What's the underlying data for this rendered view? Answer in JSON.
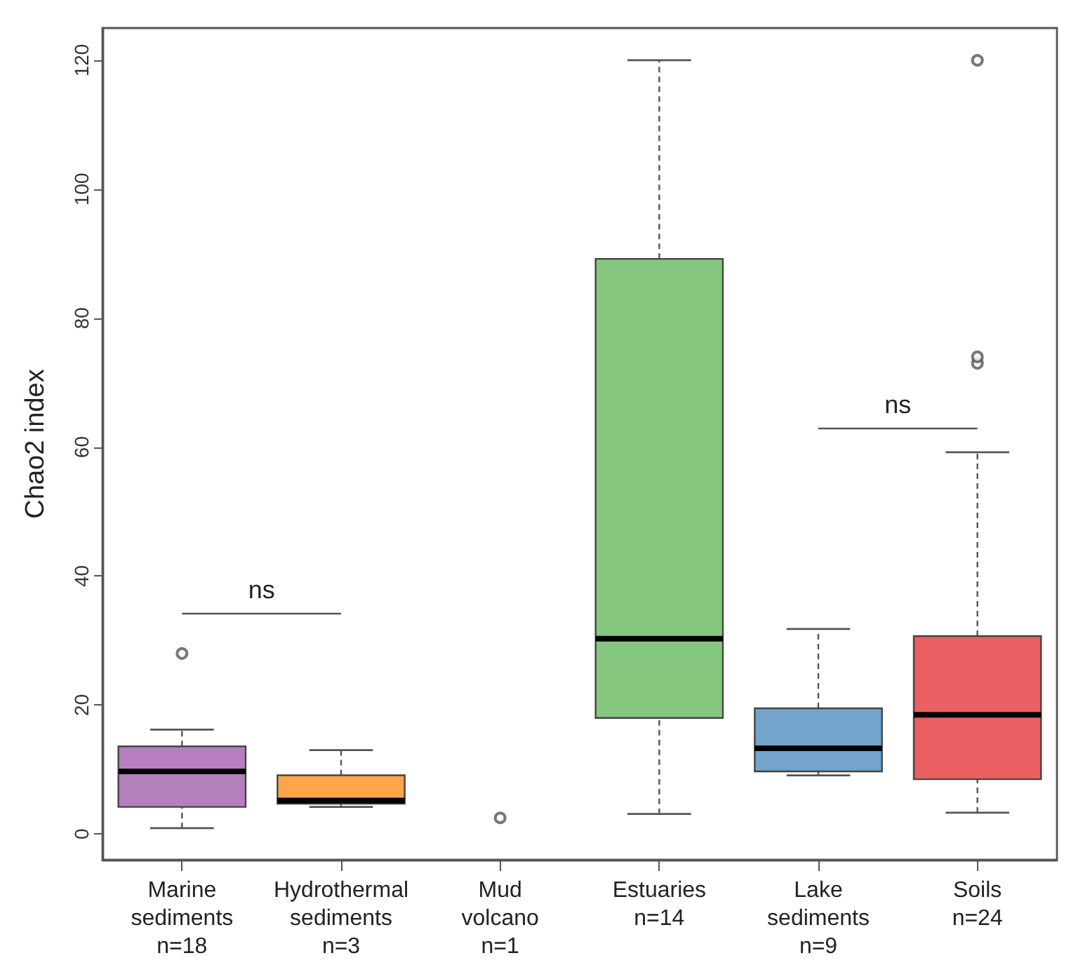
{
  "chart_data": {
    "type": "box",
    "ylabel": "Chao2 index",
    "categories": [
      "Marine\nsediments\nn=18",
      "Hydrothermal\nsediments\nn=3",
      "Mud\nvolcano\nn=1",
      "Estuaries\nn=14",
      "Lake\nsediments\nn=9",
      "Soils\nn=24"
    ],
    "colors": [
      "#b57fbd",
      "#fea54b",
      null,
      "#85c77f",
      "#73a5cc",
      "#e95f62"
    ],
    "boxes": [
      {
        "low": 0.9,
        "q1": 4.2,
        "median": 9.7,
        "q3": 13.6,
        "high": 16.2,
        "outliers": [
          28
        ]
      },
      {
        "low": 4.2,
        "q1": 4.7,
        "median": 5.2,
        "q3": 9.1,
        "high": 13
      },
      null,
      {
        "low": 3.1,
        "q1": 18,
        "median": 30.3,
        "q3": 89.2,
        "high": 120
      },
      {
        "low": 9.1,
        "q1": 9.7,
        "median": 13.3,
        "q3": 19.5,
        "high": 31.8
      },
      {
        "low": 3.3,
        "q1": 8.5,
        "median": 18.5,
        "q3": 30.7,
        "high": 59.2,
        "outliers": [
          73,
          74,
          120
        ]
      }
    ],
    "ylim": [
      -4,
      125
    ],
    "yticks": [
      0,
      20,
      40,
      60,
      80,
      100,
      120
    ],
    "grid": false,
    "series": [
      {
        "type": "scatter",
        "x": [
          "Mud\nvolcano\nn=1"
        ],
        "values": [
          2.5
        ]
      }
    ],
    "annotations": [
      "ns",
      "ns"
    ]
  }
}
